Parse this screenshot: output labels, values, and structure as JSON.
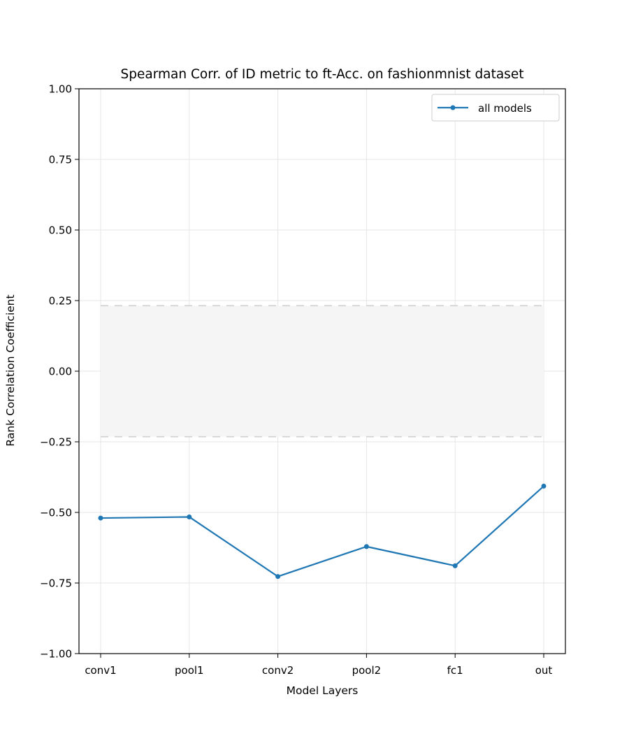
{
  "chart_data": {
    "type": "line",
    "title": "Spearman Corr. of ID metric to ft-Acc. on fashionmnist dataset",
    "xlabel": "Model Layers",
    "ylabel": "Rank Correlation Coefficient",
    "categories": [
      "conv1",
      "pool1",
      "conv2",
      "pool2",
      "fc1",
      "out"
    ],
    "ylim": [
      -1.0,
      1.0
    ],
    "yticks": [
      -1.0,
      -0.75,
      -0.5,
      -0.25,
      0.0,
      0.25,
      0.5,
      0.75,
      1.0
    ],
    "ytick_labels": [
      "−1.00",
      "−0.75",
      "−0.50",
      "−0.25",
      "0.00",
      "0.25",
      "0.50",
      "0.75",
      "1.00"
    ],
    "grid": true,
    "legend_position": "top-right",
    "series": [
      {
        "name": "all models",
        "values": [
          -0.52,
          -0.516,
          -0.727,
          -0.621,
          -0.689,
          -0.407
        ],
        "color": "#1f77b4"
      }
    ],
    "band": {
      "lower": -0.232,
      "upper": 0.232,
      "fill": "#f5f5f5",
      "edge": "#d3d3d3"
    }
  }
}
